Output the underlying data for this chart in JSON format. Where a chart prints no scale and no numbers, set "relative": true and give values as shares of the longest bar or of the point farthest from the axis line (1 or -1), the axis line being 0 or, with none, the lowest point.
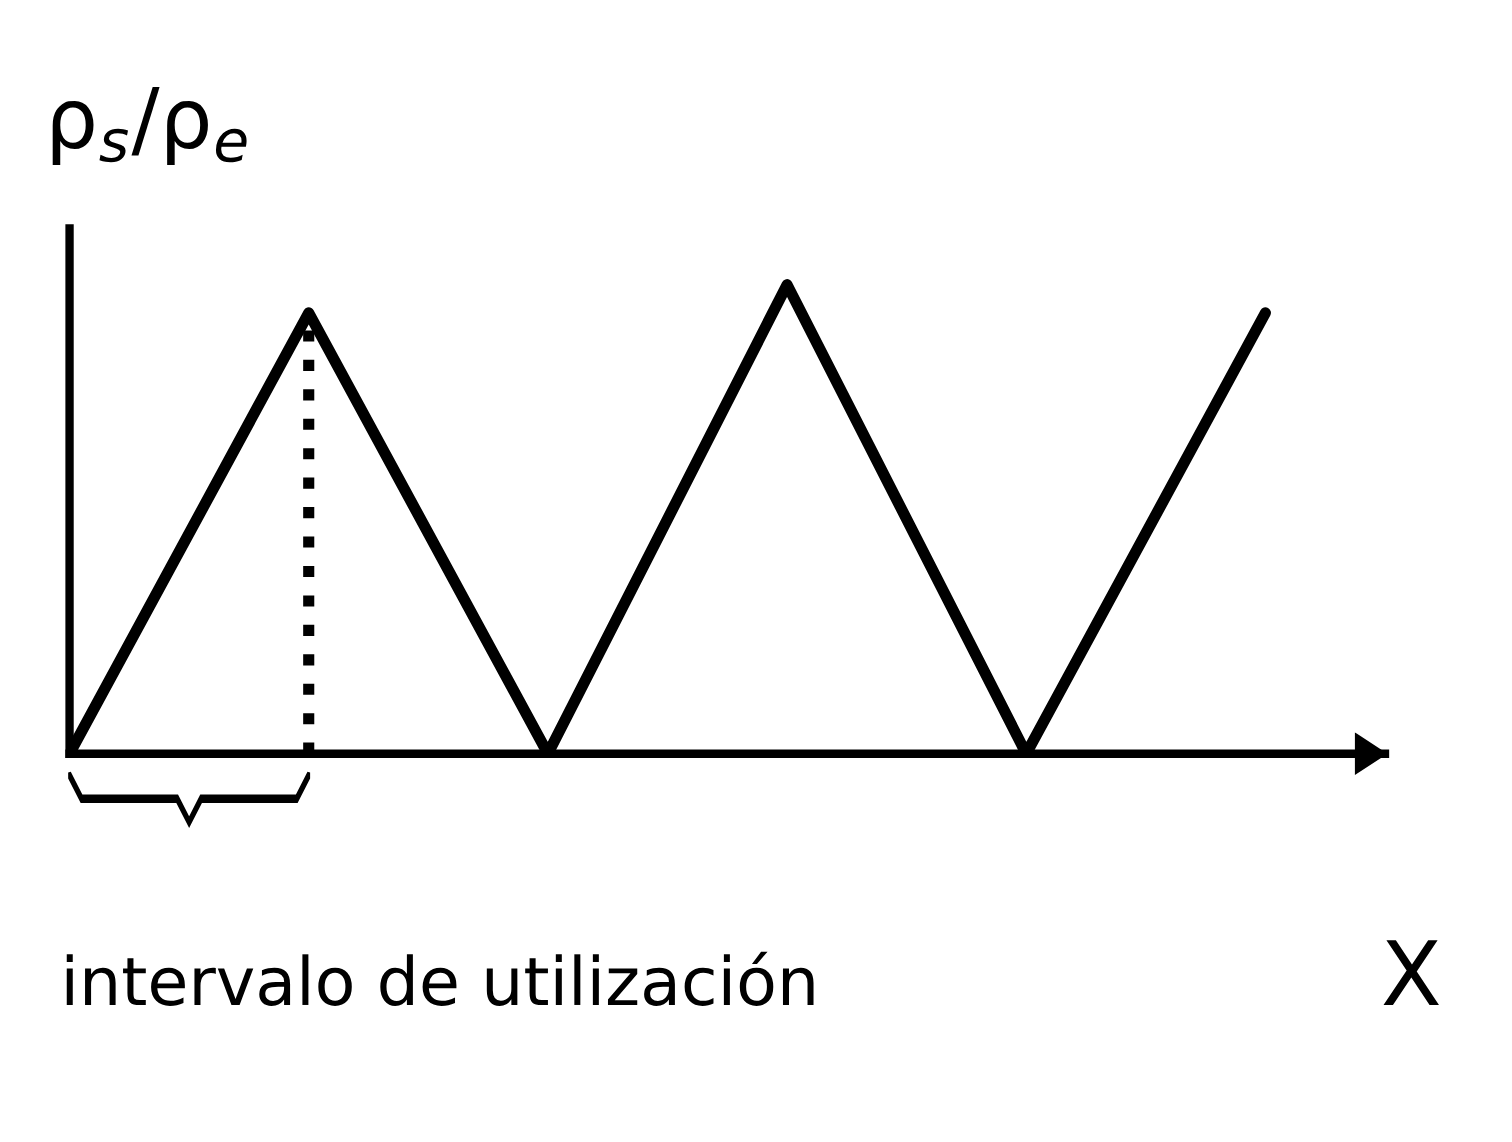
{
  "chart_data": {
    "type": "line",
    "relative": true,
    "xlabel": "X",
    "ylabel": "ρ$_{s}$/ρ$_{e}$",
    "categories": [
      null,
      null,
      null,
      null,
      null,
      null
    ],
    "series": [
      {
        "color": "#000000",
        "values": [
          0,
          0.94,
          0,
          1,
          0,
          0.94
        ]
      }
    ],
    "annotations": [
      "intervalo de utilización"
    ],
    "marker": "none",
    "line_style": "solid"
  }
}
